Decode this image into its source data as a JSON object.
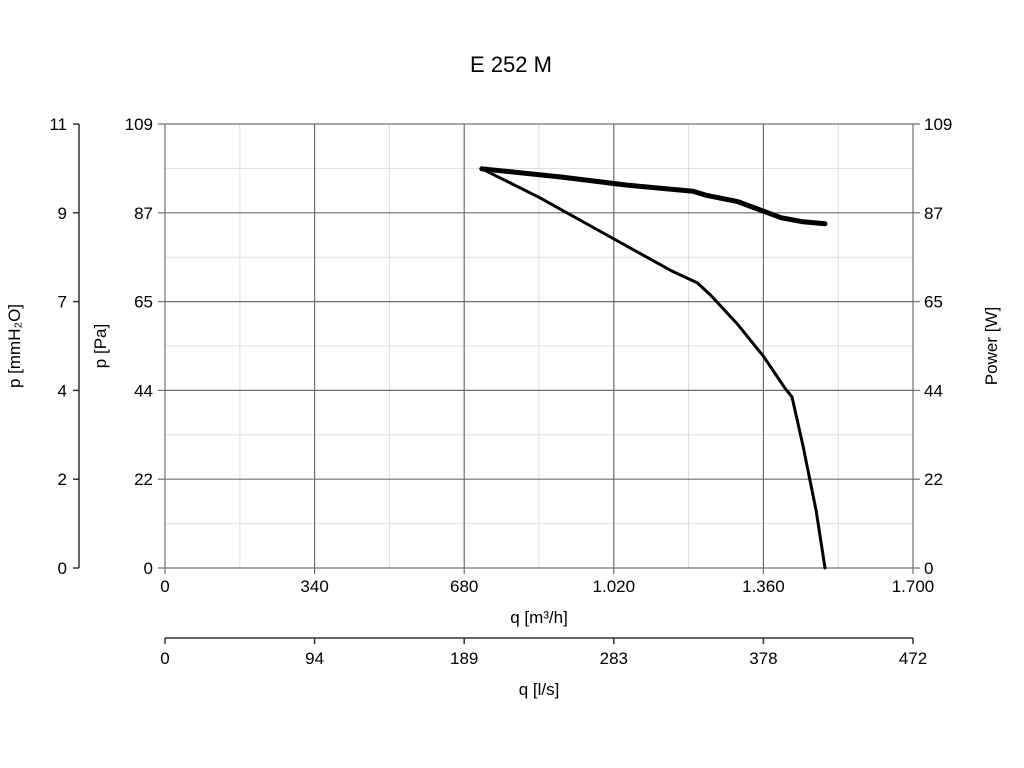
{
  "chart_data": {
    "type": "line",
    "title": "E 252 M",
    "x_axes": [
      {
        "label": "q [m³/h]",
        "ticks": [
          "0",
          "340",
          "680",
          "1.020",
          "1.360",
          "1.700"
        ],
        "range": [
          0,
          1700
        ]
      },
      {
        "label": "q [l/s]",
        "ticks": [
          "0",
          "94",
          "189",
          "283",
          "378",
          "472"
        ],
        "range": [
          0,
          472
        ]
      }
    ],
    "y_axes": [
      {
        "label": "p [mmH₂O]",
        "ticks": [
          "0",
          "2",
          "4",
          "7",
          "9",
          "11"
        ]
      },
      {
        "label": "p [Pa]",
        "ticks": [
          "0",
          "22",
          "44",
          "65",
          "87",
          "109"
        ],
        "range": [
          0,
          109
        ]
      },
      {
        "label": "Power [W]",
        "ticks": [
          "0",
          "22",
          "44",
          "65",
          "87",
          "109"
        ],
        "range": [
          0,
          109
        ]
      }
    ],
    "grid": true,
    "series": [
      {
        "role": "pressure",
        "axis": "p [Pa]",
        "x": [
          720,
          850,
          1000,
          1150,
          1210,
          1240,
          1300,
          1360,
          1410,
          1425,
          1450,
          1480,
          1500
        ],
        "y": [
          98,
          91,
          82,
          73,
          70,
          67,
          60,
          52,
          44,
          42,
          30,
          14,
          0
        ]
      },
      {
        "role": "power",
        "axis": "Power [W]",
        "x": [
          720,
          900,
          1050,
          1200,
          1230,
          1300,
          1350,
          1400,
          1450,
          1500
        ],
        "y": [
          98,
          96,
          94,
          92.5,
          91.5,
          90,
          88,
          86,
          85,
          84.5
        ]
      }
    ]
  }
}
